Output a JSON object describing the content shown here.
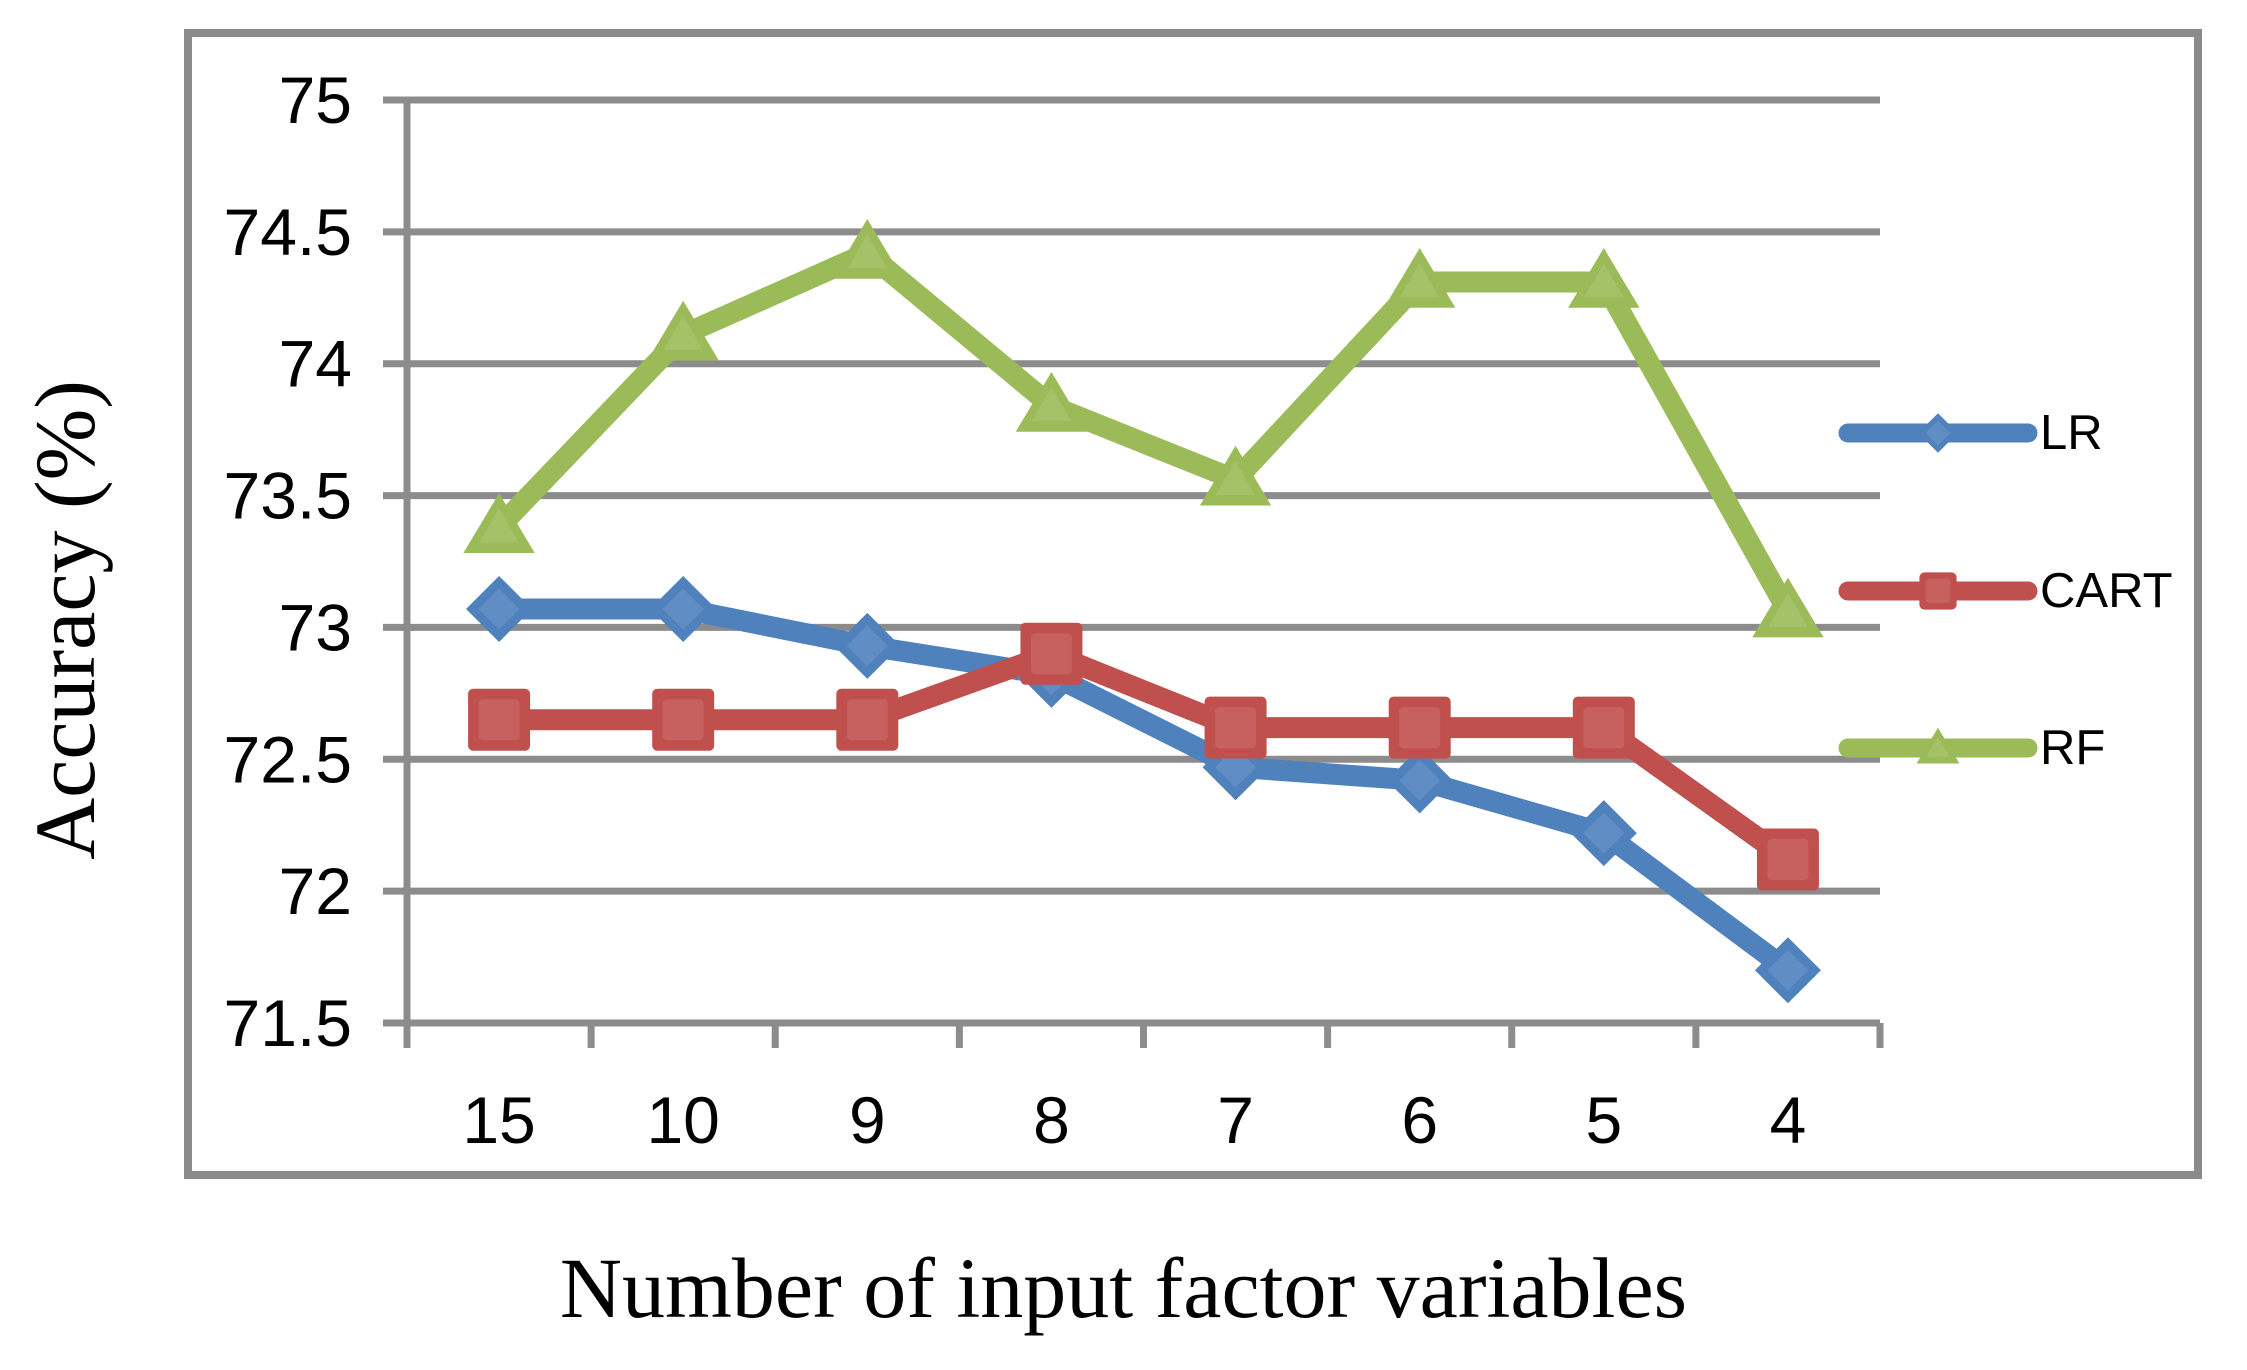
{
  "chart_data": {
    "type": "line",
    "title": "",
    "xlabel": "Number of input factor variables",
    "ylabel": "Accuracy (%)",
    "categories": [
      "15",
      "10",
      "9",
      "8",
      "7",
      "6",
      "5",
      "4"
    ],
    "series": [
      {
        "name": "LR",
        "marker": "diamond",
        "color": "#4F81BD",
        "values": [
          73.07,
          73.07,
          72.93,
          72.82,
          72.47,
          72.42,
          72.22,
          71.7
        ]
      },
      {
        "name": "CART",
        "marker": "square",
        "color": "#C0504D",
        "values": [
          72.65,
          72.65,
          72.65,
          72.9,
          72.62,
          72.62,
          72.62,
          72.12
        ]
      },
      {
        "name": "RF",
        "marker": "triangle",
        "color": "#9BBB59",
        "values": [
          73.38,
          74.11,
          74.42,
          73.84,
          73.56,
          74.31,
          74.31,
          73.06
        ]
      }
    ],
    "ylim": [
      71.5,
      75
    ],
    "ytick_step": 0.5,
    "yticks": [
      "75",
      "74.5",
      "74",
      "73.5",
      "73",
      "72.5",
      "72",
      "71.5"
    ],
    "grid": true,
    "legend": [
      "LR",
      "CART",
      "RF"
    ],
    "legend_position": "right",
    "gridline_color": "#8C8C8C",
    "frame_color": "#8A8A8A",
    "axis_color": "#8C8C8C",
    "background_color": "#FFFFFF",
    "text_color": "#000000"
  }
}
